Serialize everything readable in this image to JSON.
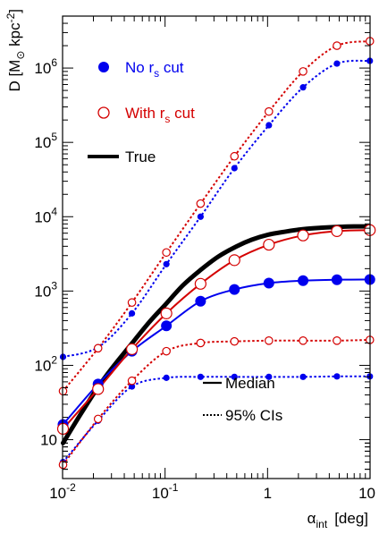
{
  "chart_data": {
    "type": "line",
    "x_scale": "log",
    "y_scale": "log",
    "xlim": [
      0.01,
      10
    ],
    "ylim": [
      3,
      5000000
    ],
    "xlabel_main": "α",
    "xlabel_sub": "int",
    "xlabel_unit": "[deg]",
    "ylabel_main": "D [M",
    "ylabel_sub": "⊙",
    "ylabel_unit": " kpc",
    "ylabel_sup": "-2",
    "ylabel_close": "]",
    "x_ticks": [
      {
        "value": 0.01,
        "base": "10",
        "exp": "-2"
      },
      {
        "value": 0.1,
        "base": "10",
        "exp": "-1"
      },
      {
        "value": 1,
        "base": "1",
        "exp": ""
      },
      {
        "value": 10,
        "base": "10",
        "exp": ""
      }
    ],
    "y_ticks": [
      {
        "value": 10,
        "base": "10",
        "exp": ""
      },
      {
        "value": 100,
        "base": "10",
        "exp": "2"
      },
      {
        "value": 1000,
        "base": "10",
        "exp": "3"
      },
      {
        "value": 10000,
        "base": "10",
        "exp": "4"
      },
      {
        "value": 100000,
        "base": "10",
        "exp": "5"
      },
      {
        "value": 1000000,
        "base": "10",
        "exp": "6"
      }
    ],
    "x": [
      0.0101,
      0.0222,
      0.0475,
      0.103,
      0.222,
      0.475,
      1.03,
      2.22,
      4.75,
      9.95
    ],
    "series": [
      {
        "name": "No r_s cut",
        "role": "median",
        "color": "#0000ee",
        "marker": "filled",
        "marker_size": 6,
        "values": [
          16,
          56,
          155,
          340,
          730,
          1050,
          1280,
          1380,
          1420,
          1430
        ]
      },
      {
        "name": "No r_s cut",
        "role": "ci_upper",
        "color": "#0000ee",
        "marker": "filled",
        "marker_size": 3.6,
        "values": [
          130,
          175,
          500,
          2300,
          10000,
          45000,
          170000,
          550000,
          1150000,
          1250000
        ]
      },
      {
        "name": "No r_s cut",
        "role": "ci_lower",
        "color": "#0000ee",
        "marker": "filled",
        "marker_size": 3.6,
        "values": [
          5,
          18,
          52,
          68,
          70,
          70,
          70,
          70,
          71,
          71
        ]
      },
      {
        "name": "With r_s cut",
        "role": "median",
        "color": "#d40000",
        "marker": "open",
        "marker_size": 6,
        "values": [
          14,
          48,
          165,
          500,
          1250,
          2600,
          4200,
          5600,
          6400,
          6600
        ]
      },
      {
        "name": "With r_s cut",
        "role": "ci_upper",
        "color": "#d40000",
        "marker": "open",
        "marker_size": 4.2,
        "values": [
          45,
          170,
          700,
          3300,
          15000,
          65000,
          260000,
          900000,
          2000000,
          2300000
        ]
      },
      {
        "name": "With r_s cut",
        "role": "ci_lower",
        "color": "#d40000",
        "marker": "open",
        "marker_size": 4.2,
        "values": [
          4.6,
          19,
          62,
          155,
          200,
          210,
          215,
          215,
          215,
          220
        ]
      }
    ],
    "true_curve": {
      "name": "True",
      "color": "#000000",
      "x": [
        0.0101,
        0.015,
        0.022,
        0.03,
        0.045,
        0.07,
        0.1,
        0.15,
        0.22,
        0.33,
        0.5,
        0.7,
        1.0,
        1.5,
        2.2,
        3.3,
        5,
        7,
        9.95
      ],
      "values": [
        9,
        22,
        50,
        90,
        180,
        380,
        650,
        1200,
        1900,
        2900,
        4000,
        4900,
        5700,
        6300,
        6800,
        7100,
        7300,
        7400,
        7400
      ]
    },
    "legend_markers": {
      "items": [
        {
          "label_main": "No r",
          "label_sub": "s",
          "label_tail": " cut",
          "color": "#0000ee",
          "marker": "filled"
        },
        {
          "label_main": "With r",
          "label_sub": "s",
          "label_tail": " cut",
          "color": "#d40000",
          "marker": "open"
        },
        {
          "label_main": "True",
          "label_sub": "",
          "label_tail": "",
          "color": "#000000",
          "marker": "thick-line"
        }
      ],
      "placement": "top-left"
    },
    "legend_styles": {
      "items": [
        {
          "label": "Median",
          "style": "solid"
        },
        {
          "label": "95% CIs",
          "style": "dotted"
        }
      ],
      "placement": "bottom-right"
    }
  }
}
